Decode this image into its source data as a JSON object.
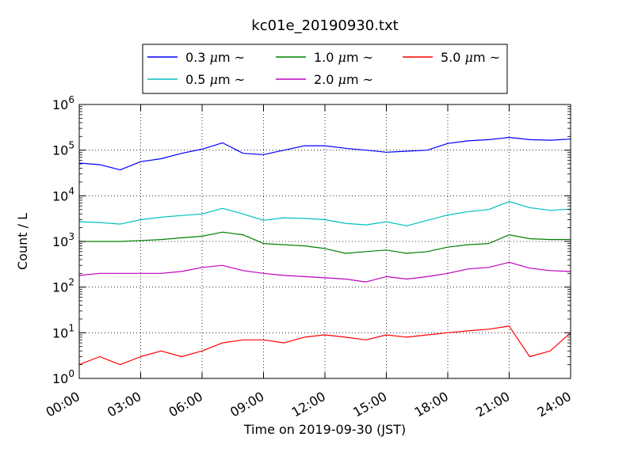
{
  "chart_data": {
    "type": "line",
    "title": "kc01e_20190930.txt",
    "xlabel": "Time on 2019-09-30 (JST)",
    "ylabel": "Count / L",
    "y_scale": "log",
    "grid": true,
    "legend_position": "top",
    "xlim": [
      "00:00",
      "24:00"
    ],
    "ylim": [
      1,
      1000000
    ],
    "x_ticks": [
      "00:00",
      "03:00",
      "06:00",
      "09:00",
      "12:00",
      "15:00",
      "18:00",
      "21:00",
      "24:00"
    ],
    "y_ticks": [
      {
        "value": 1,
        "base": "10",
        "exp": "0"
      },
      {
        "value": 10,
        "base": "10",
        "exp": "1"
      },
      {
        "value": 100,
        "base": "10",
        "exp": "2"
      },
      {
        "value": 1000,
        "base": "10",
        "exp": "3"
      },
      {
        "value": 10000,
        "base": "10",
        "exp": "4"
      },
      {
        "value": 100000,
        "base": "10",
        "exp": "5"
      },
      {
        "value": 1000000,
        "base": "10",
        "exp": "6"
      }
    ],
    "x": [
      "00:00",
      "01:00",
      "02:00",
      "03:00",
      "04:00",
      "05:00",
      "06:00",
      "07:00",
      "08:00",
      "09:00",
      "10:00",
      "11:00",
      "12:00",
      "13:00",
      "14:00",
      "15:00",
      "16:00",
      "17:00",
      "18:00",
      "19:00",
      "20:00",
      "21:00",
      "22:00",
      "23:00",
      "24:00"
    ],
    "series": [
      {
        "name": "0.3",
        "unit": "μm",
        "suffix": "~",
        "color": "#0000ff",
        "values": [
          52000,
          48000,
          37000,
          56000,
          65000,
          85000,
          105000,
          145000,
          85000,
          80000,
          100000,
          125000,
          125000,
          110000,
          100000,
          90000,
          95000,
          100000,
          140000,
          160000,
          170000,
          190000,
          170000,
          165000,
          175000
        ]
      },
      {
        "name": "0.5",
        "unit": "μm",
        "suffix": "~",
        "color": "#00bfbf",
        "values": [
          2700,
          2600,
          2400,
          3000,
          3400,
          3700,
          4000,
          5300,
          4000,
          2900,
          3300,
          3200,
          3000,
          2500,
          2300,
          2700,
          2200,
          2900,
          3800,
          4500,
          5000,
          7500,
          5500,
          4800,
          5100
        ]
      },
      {
        "name": "1.0",
        "unit": "μm",
        "suffix": "~",
        "color": "#008000",
        "values": [
          1000,
          1000,
          1000,
          1050,
          1100,
          1200,
          1300,
          1600,
          1400,
          900,
          850,
          800,
          700,
          550,
          600,
          650,
          550,
          600,
          750,
          850,
          900,
          1400,
          1150,
          1100,
          1100
        ]
      },
      {
        "name": "2.0",
        "unit": "μm",
        "suffix": "~",
        "color": "#bf00bf",
        "values": [
          180,
          200,
          200,
          200,
          200,
          220,
          270,
          300,
          230,
          200,
          180,
          170,
          160,
          150,
          130,
          170,
          150,
          170,
          200,
          250,
          270,
          350,
          260,
          230,
          220
        ]
      },
      {
        "name": "5.0",
        "unit": "μm",
        "suffix": "~",
        "color": "#ff0000",
        "values": [
          2,
          3,
          2,
          3,
          4,
          3,
          4,
          6,
          7,
          7,
          6,
          8,
          9,
          8,
          7,
          9,
          8,
          9,
          10,
          11,
          12,
          14,
          3,
          4,
          10
        ]
      }
    ]
  }
}
